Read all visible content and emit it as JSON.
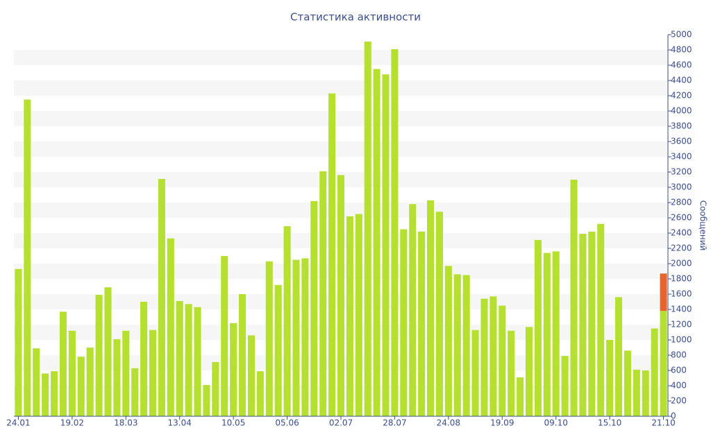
{
  "chart_data": {
    "type": "stacked_bar",
    "title": "Статистика активности",
    "y_label": "Сообщений",
    "categories": [
      "24.01",
      null,
      null,
      null,
      null,
      null,
      "19.02",
      null,
      null,
      null,
      null,
      null,
      "18.03",
      null,
      null,
      null,
      null,
      null,
      "13.04",
      null,
      null,
      null,
      null,
      null,
      "10.05",
      null,
      null,
      null,
      null,
      null,
      "05.06",
      null,
      null,
      null,
      null,
      null,
      "02.07",
      null,
      null,
      null,
      null,
      null,
      "28.07",
      null,
      null,
      null,
      null,
      null,
      "24.08",
      null,
      null,
      null,
      null,
      null,
      "19.09",
      null,
      null,
      null,
      null,
      null,
      "09.10",
      null,
      null,
      null,
      null,
      null,
      "15.10",
      null,
      null,
      null,
      null,
      null,
      "21.10"
    ],
    "series": [
      {
        "color": "#b5e030",
        "values": [
          1930,
          4150,
          890,
          560,
          590,
          1370,
          1120,
          780,
          900,
          1590,
          1690,
          1010,
          1120,
          630,
          1500,
          1130,
          3110,
          2330,
          1510,
          1470,
          1430,
          410,
          710,
          2100,
          1220,
          1600,
          1060,
          590,
          2030,
          1720,
          2490,
          2050,
          2070,
          2820,
          3210,
          4230,
          3160,
          2620,
          2650,
          4910,
          4550,
          4480,
          4810,
          2450,
          2780,
          2420,
          2830,
          2680,
          1970,
          1860,
          1850,
          1130,
          1540,
          1570,
          1450,
          1120,
          510,
          1170,
          2310,
          2140,
          2160,
          790,
          3100,
          2390,
          2420,
          2520,
          1000,
          1560,
          860,
          610,
          600,
          1150,
          1380
        ]
      },
      {
        "color": "#e8642c",
        "values": [
          null,
          null,
          null,
          null,
          null,
          null,
          null,
          null,
          null,
          null,
          null,
          null,
          null,
          null,
          null,
          null,
          null,
          null,
          null,
          null,
          null,
          null,
          null,
          null,
          null,
          null,
          null,
          null,
          null,
          null,
          null,
          null,
          null,
          null,
          null,
          null,
          null,
          null,
          null,
          null,
          null,
          null,
          null,
          null,
          null,
          null,
          null,
          null,
          null,
          null,
          null,
          null,
          null,
          null,
          null,
          null,
          null,
          null,
          null,
          null,
          null,
          null,
          null,
          null,
          null,
          null,
          null,
          null,
          null,
          null,
          null,
          null,
          490
        ]
      }
    ],
    "ylim": [
      0,
      5000
    ],
    "yticks": [
      0,
      200,
      400,
      600,
      800,
      1000,
      1200,
      1400,
      1600,
      1800,
      2000,
      2200,
      2400,
      2600,
      2800,
      3000,
      3200,
      3400,
      3600,
      3800,
      4000,
      4200,
      4400,
      4600,
      4800,
      5000
    ],
    "grid": "bands",
    "y_axis_side": "right"
  }
}
